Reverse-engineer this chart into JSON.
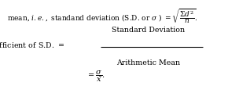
{
  "background_color": "#ffffff",
  "figsize": [
    3.04,
    1.19
  ],
  "dpi": 100,
  "line1": "mean, $i.e.,$ standand deviation (S.D. or $\\sigma$ ) $= \\sqrt{\\dfrac{\\Sigma d^2}{n}}$.",
  "line2_left": "Co-efficient of S.D. $=$",
  "line2_num": "Standard Deviation",
  "line2_den": "Arithmetic Mean",
  "line3": "$= \\dfrac{\\sigma}{\\bar{x}}.$",
  "text_color": "#000000",
  "fontsize_line1": 6.5,
  "fontsize_line2": 6.8,
  "fontsize_line3": 7.0
}
